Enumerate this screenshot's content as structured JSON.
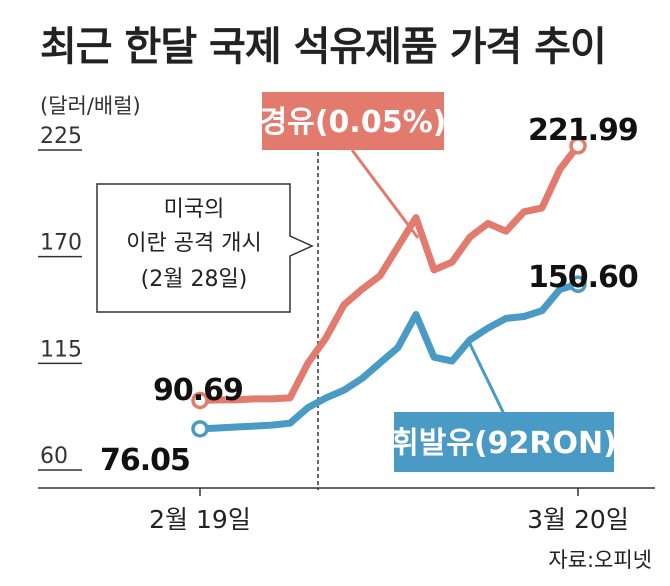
{
  "title": "최근 한달 국제 석유제품 가격 추이",
  "unit": "(달러/배럴)",
  "source": "자료:오피넷",
  "colors": {
    "diesel": "#e27b6d",
    "gasoline": "#4a9ac6",
    "axis": "#333333"
  },
  "chart_data": {
    "type": "line",
    "title": "최근 한달 국제 석유제품 가격 추이",
    "ylabel": "(달러/배럴)",
    "ylim": [
      60,
      225
    ],
    "yticks": [
      225,
      170,
      115,
      60
    ],
    "x_tick_labels": [
      "2월 19일",
      "3월 20일"
    ],
    "series": [
      {
        "name": "경유(0.05%)",
        "start_value": "90.69",
        "end_value": "221.99",
        "values": [
          90.69,
          91,
          91,
          91.5,
          91.5,
          92,
          110,
          123,
          140,
          148,
          155,
          170,
          185,
          158,
          162,
          175,
          182,
          178,
          188,
          190,
          210,
          221.99
        ]
      },
      {
        "name": "휘발유(92RON)",
        "start_value": "76.05",
        "end_value": "150.60",
        "values": [
          76.05,
          76.5,
          77,
          77.5,
          78,
          79,
          87,
          92,
          96,
          102,
          110,
          118,
          135,
          113,
          111,
          122,
          128,
          133,
          134,
          137,
          148,
          150.6
        ]
      }
    ],
    "annotation": {
      "lines": [
        "미국의",
        "이란 공격 개시",
        "(2월 28일)"
      ]
    }
  }
}
